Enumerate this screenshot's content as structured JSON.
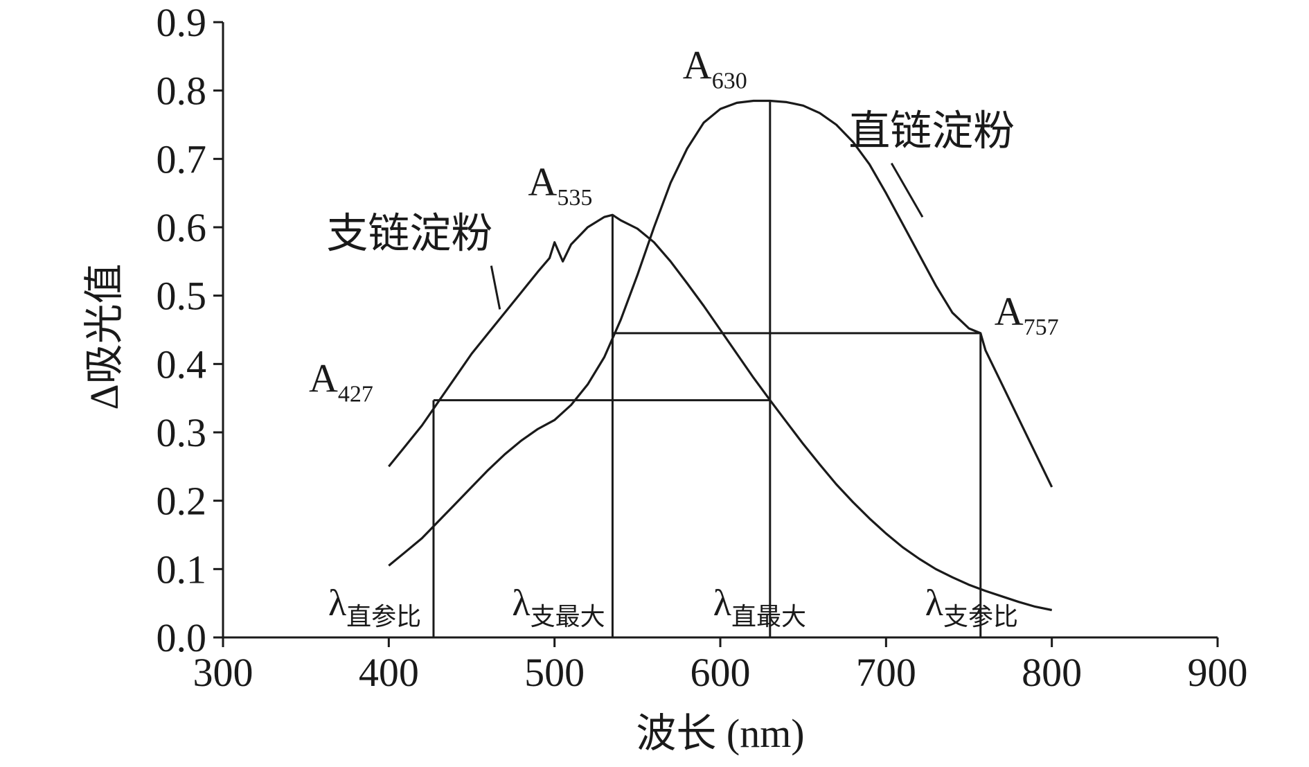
{
  "chart_data": {
    "type": "line",
    "xlabel": "波长 (nm)",
    "ylabel": "Δ吸光值",
    "xlim": [
      300,
      900
    ],
    "ylim": [
      0.0,
      0.9
    ],
    "x_ticks": [
      "300",
      "400",
      "500",
      "600",
      "700",
      "800",
      "900"
    ],
    "y_ticks": [
      "0.0",
      "0.1",
      "0.2",
      "0.3",
      "0.4",
      "0.5",
      "0.6",
      "0.7",
      "0.8",
      "0.9"
    ],
    "grid": false,
    "series": [
      {
        "name": "支链淀粉",
        "x": [
          400,
          410,
          420,
          430,
          440,
          450,
          460,
          470,
          480,
          490,
          497,
          500,
          505,
          510,
          520,
          530,
          535,
          540,
          550,
          560,
          570,
          580,
          590,
          600,
          610,
          620,
          630,
          640,
          650,
          660,
          670,
          680,
          690,
          700,
          710,
          720,
          730,
          740,
          750,
          760,
          770,
          780,
          790,
          800
        ],
        "y": [
          0.25,
          0.28,
          0.31,
          0.345,
          0.38,
          0.415,
          0.445,
          0.475,
          0.505,
          0.535,
          0.555,
          0.578,
          0.55,
          0.575,
          0.6,
          0.615,
          0.618,
          0.61,
          0.598,
          0.578,
          0.55,
          0.518,
          0.485,
          0.45,
          0.415,
          0.38,
          0.347,
          0.315,
          0.283,
          0.253,
          0.224,
          0.198,
          0.174,
          0.152,
          0.132,
          0.115,
          0.1,
          0.088,
          0.077,
          0.068,
          0.06,
          0.052,
          0.045,
          0.04
        ]
      },
      {
        "name": "直链淀粉",
        "x": [
          400,
          410,
          420,
          430,
          440,
          450,
          460,
          470,
          480,
          490,
          500,
          510,
          520,
          530,
          540,
          550,
          560,
          570,
          580,
          590,
          600,
          610,
          620,
          630,
          640,
          650,
          660,
          670,
          680,
          690,
          700,
          710,
          720,
          730,
          740,
          750,
          757,
          760,
          770,
          780,
          790,
          800
        ],
        "y": [
          0.105,
          0.125,
          0.145,
          0.17,
          0.195,
          0.22,
          0.245,
          0.268,
          0.288,
          0.305,
          0.318,
          0.34,
          0.37,
          0.41,
          0.465,
          0.53,
          0.6,
          0.665,
          0.715,
          0.753,
          0.773,
          0.782,
          0.785,
          0.785,
          0.783,
          0.778,
          0.767,
          0.75,
          0.725,
          0.692,
          0.65,
          0.605,
          0.56,
          0.515,
          0.475,
          0.452,
          0.445,
          0.42,
          0.37,
          0.32,
          0.27,
          0.22
        ]
      }
    ],
    "reference_lines": {
      "verticals": [
        {
          "x": 427,
          "y": 0.347
        },
        {
          "x": 535,
          "y": 0.618
        },
        {
          "x": 630,
          "y": 0.785
        },
        {
          "x": 757,
          "y": 0.445
        }
      ],
      "horizontals": [
        {
          "y": 0.347,
          "x_from": 427,
          "x_to": 630
        },
        {
          "y": 0.445,
          "x_from": 535,
          "x_to": 757
        }
      ]
    },
    "annotations": {
      "points": [
        {
          "main": "A",
          "sub": "427",
          "x": 427,
          "y": 0.347
        },
        {
          "main": "A",
          "sub": "535",
          "x": 535,
          "y": 0.618
        },
        {
          "main": "A",
          "sub": "630",
          "x": 630,
          "y": 0.785
        },
        {
          "main": "A",
          "sub": "757",
          "x": 757,
          "y": 0.445
        }
      ],
      "lambdas": [
        {
          "main": "λ",
          "sub": "直参比",
          "x": 427
        },
        {
          "main": "λ",
          "sub": "支最大",
          "x": 535
        },
        {
          "main": "λ",
          "sub": "直最大",
          "x": 630
        },
        {
          "main": "λ",
          "sub": "支参比",
          "x": 757
        }
      ],
      "series_labels": [
        {
          "text": "支链淀粉",
          "x": 400,
          "y": 0.57,
          "pointer_to": [
            467,
            0.48
          ]
        },
        {
          "text": "直链淀粉",
          "x": 715,
          "y": 0.72,
          "pointer_to": [
            722,
            0.615
          ]
        }
      ]
    }
  }
}
